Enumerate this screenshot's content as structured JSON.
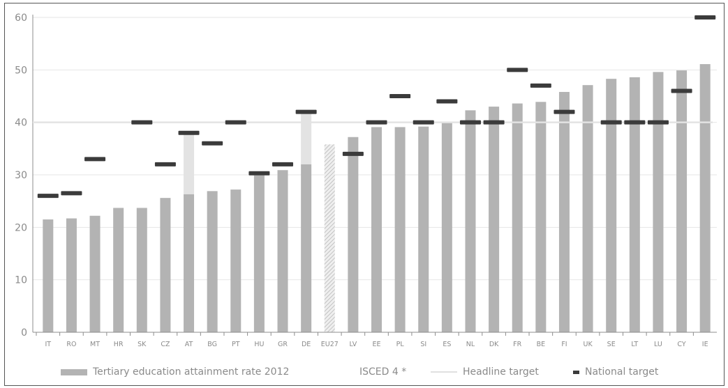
{
  "chart_data": {
    "type": "bar",
    "title": "",
    "xlabel": "",
    "ylabel": "",
    "ylim": [
      0,
      60
    ],
    "yticks": [
      0,
      10,
      20,
      30,
      40,
      50,
      60
    ],
    "grid": true,
    "headline_target": 40,
    "categories": [
      "IT",
      "RO",
      "MT",
      "HR",
      "SK",
      "CZ",
      "AT",
      "BG",
      "PT",
      "HU",
      "GR",
      "DE",
      "EU27",
      "LV",
      "EE",
      "PL",
      "SI",
      "ES",
      "NL",
      "DK",
      "FR",
      "BE",
      "FI",
      "UK",
      "SE",
      "LT",
      "LU",
      "CY",
      "IE"
    ],
    "series": [
      {
        "name": "Tertiary education attainment rate 2012",
        "values": [
          21.5,
          21.7,
          22.2,
          23.7,
          23.7,
          25.6,
          26.3,
          26.9,
          27.2,
          29.9,
          30.9,
          32.0,
          35.8,
          37.2,
          39.1,
          39.1,
          39.2,
          40.1,
          42.3,
          43.0,
          43.6,
          43.9,
          45.8,
          47.1,
          48.3,
          48.6,
          49.6,
          49.9,
          51.1
        ]
      },
      {
        "name": "ISCED 4 *",
        "values": [
          null,
          null,
          null,
          null,
          null,
          null,
          38.0,
          null,
          null,
          null,
          null,
          42.0,
          null,
          null,
          null,
          null,
          null,
          null,
          null,
          null,
          null,
          null,
          null,
          null,
          null,
          null,
          null,
          null,
          null
        ]
      },
      {
        "name": "National target",
        "values": [
          26,
          26.5,
          33,
          null,
          40,
          32,
          38,
          36,
          40,
          30.3,
          32,
          42,
          null,
          34,
          40,
          45,
          40,
          44,
          40,
          40,
          50,
          47,
          42,
          null,
          40,
          40,
          40,
          46,
          60
        ]
      }
    ],
    "legend": [
      {
        "label": "Tertiary education attainment rate 2012"
      },
      {
        "label": "ISCED 4 *"
      },
      {
        "label": "Headline target"
      },
      {
        "label": "National target"
      }
    ],
    "legend_position": "bottom",
    "colors": {
      "bar": "#b3b3b3",
      "eu_bar": "#d9d9d9",
      "isced": "#e3e3e3",
      "headline": "#e3e3e3",
      "national": "#3b3b3b",
      "grid": "#e6e6e6",
      "axis": "#8c8c8c",
      "text": "#8a8a8a"
    }
  }
}
